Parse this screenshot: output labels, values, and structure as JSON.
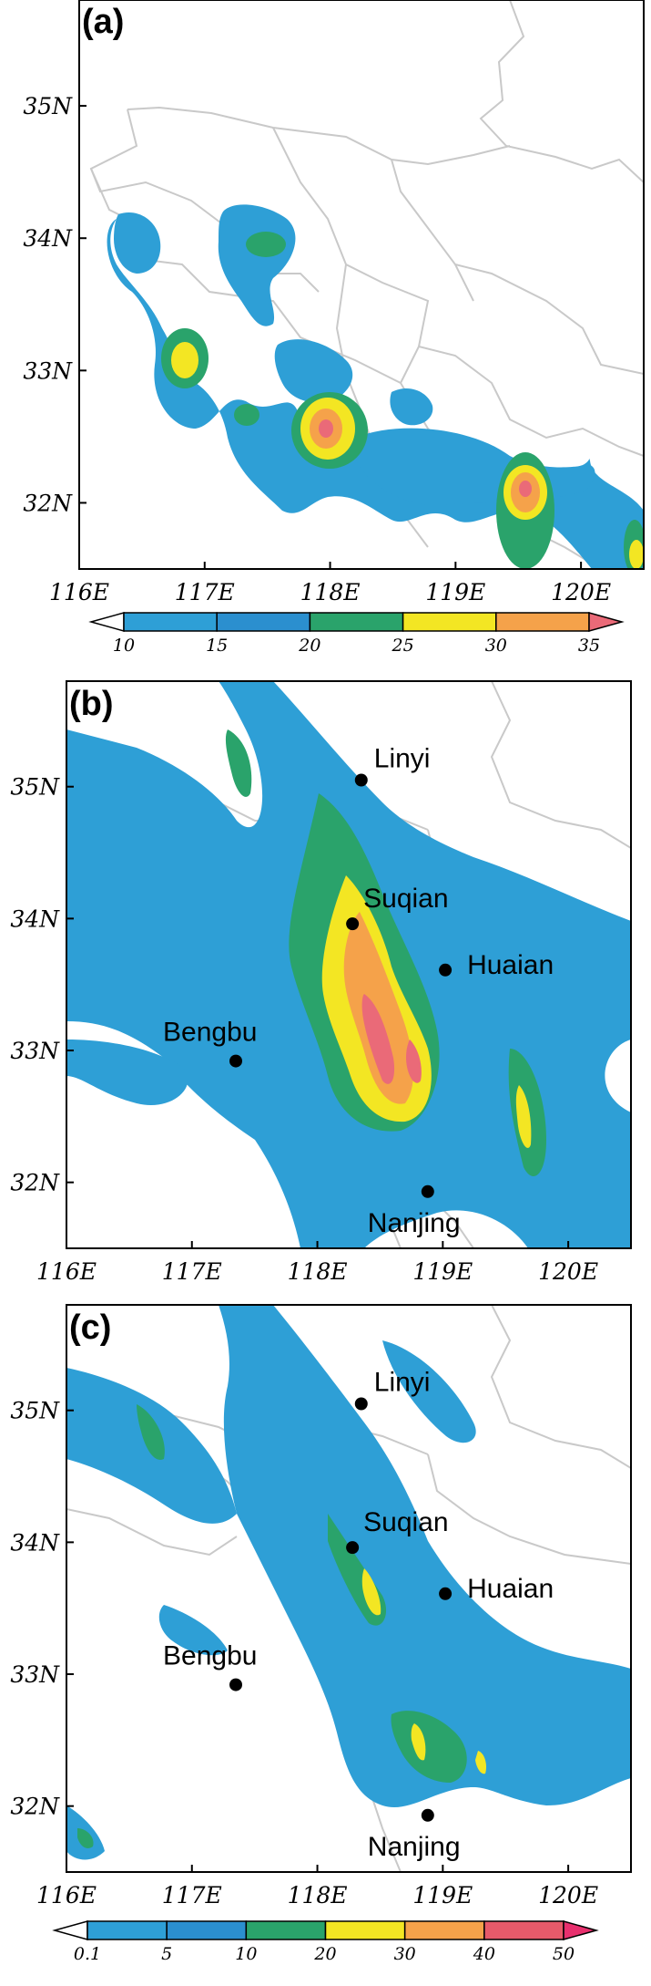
{
  "colors": {
    "c10": "#2e9fd6",
    "c15": "#2b8fcf",
    "c20": "#2aa36b",
    "c25": "#f3e623",
    "c30": "#f5a24a",
    "c35": "#ea6a78",
    "c40": "#e75a6a",
    "c50": "#e8306e",
    "border": "#c9c9c9",
    "frame": "#000000",
    "city": "#000000"
  },
  "chart_data": [
    {
      "type": "heatmap",
      "panel": "(a)",
      "xlim": [
        116,
        120.5
      ],
      "ylim": [
        31.5,
        35.8
      ],
      "x_ticks": [
        "116E",
        "117E",
        "118E",
        "119E",
        "120E"
      ],
      "y_ticks": [
        "32N",
        "33N",
        "34N",
        "35N"
      ],
      "colorbar": {
        "levels": [
          "10",
          "15",
          "20",
          "25",
          "30",
          "35"
        ]
      },
      "blobs": [
        {
          "lon": 116.7,
          "lat": 33.7,
          "rx": 0.5,
          "ry": 0.35,
          "level": 10
        },
        {
          "lon": 116.85,
          "lat": 33.05,
          "rx": 0.3,
          "ry": 0.35,
          "level": 25
        },
        {
          "lon": 117.35,
          "lat": 33.95,
          "rx": 0.2,
          "ry": 0.12,
          "level": 20
        },
        {
          "lon": 118.0,
          "lat": 32.55,
          "rx": 0.25,
          "ry": 0.3,
          "level": 30
        },
        {
          "lon": 119.55,
          "lat": 32.1,
          "rx": 0.2,
          "ry": 0.3,
          "level": 30
        },
        {
          "lon": 120.4,
          "lat": 31.7,
          "rx": 0.15,
          "ry": 0.25,
          "level": 25
        }
      ]
    },
    {
      "type": "heatmap",
      "panel": "(b)",
      "xlim": [
        116,
        120.5
      ],
      "ylim": [
        31.5,
        35.8
      ],
      "x_ticks": [
        "116E",
        "117E",
        "118E",
        "119E",
        "120E"
      ],
      "y_ticks": [
        "32N",
        "33N",
        "34N",
        "35N"
      ],
      "cities": [
        {
          "name": "Linyi",
          "lon": 118.35,
          "lat": 35.05
        },
        {
          "name": "Suqian",
          "lon": 118.28,
          "lat": 33.96
        },
        {
          "name": "Huaian",
          "lon": 119.02,
          "lat": 33.61
        },
        {
          "name": "Bengbu",
          "lon": 117.35,
          "lat": 32.92
        },
        {
          "name": "Nanjing",
          "lon": 118.88,
          "lat": 31.93
        }
      ]
    },
    {
      "type": "heatmap",
      "panel": "(c)",
      "xlim": [
        116,
        120.5
      ],
      "ylim": [
        31.5,
        35.8
      ],
      "x_ticks": [
        "116E",
        "117E",
        "118E",
        "119E",
        "120E"
      ],
      "y_ticks": [
        "32N",
        "33N",
        "34N",
        "35N"
      ],
      "cities": [
        {
          "name": "Linyi",
          "lon": 118.35,
          "lat": 35.05
        },
        {
          "name": "Suqian",
          "lon": 118.28,
          "lat": 33.96
        },
        {
          "name": "Huaian",
          "lon": 119.02,
          "lat": 33.61
        },
        {
          "name": "Bengbu",
          "lon": 117.35,
          "lat": 32.92
        },
        {
          "name": "Nanjing",
          "lon": 118.88,
          "lat": 31.93
        }
      ],
      "colorbar": {
        "levels": [
          "0.1",
          "5",
          "10",
          "20",
          "30",
          "40",
          "50"
        ]
      }
    }
  ]
}
